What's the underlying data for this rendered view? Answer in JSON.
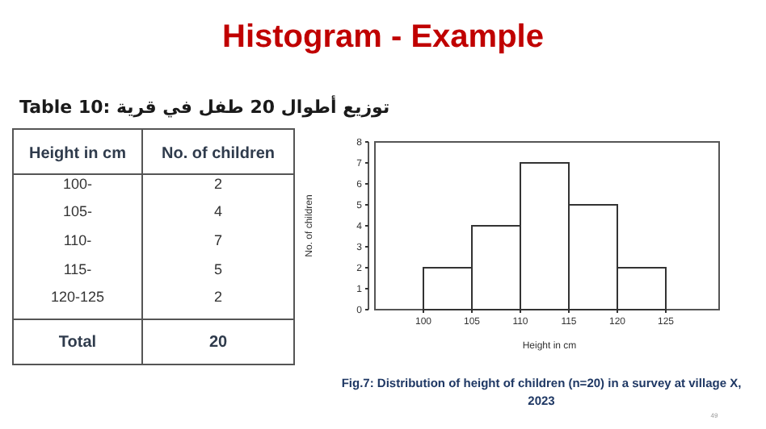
{
  "chart_data": {
    "type": "histogram",
    "title": "Histogram - Example",
    "xlabel": "Height in cm",
    "ylabel": "No. of children",
    "bins": [
      100,
      105,
      110,
      115,
      120,
      125
    ],
    "values": [
      2,
      4,
      7,
      5,
      2
    ],
    "color": "#ffffff",
    "xlim": [
      95,
      130.5
    ],
    "xticks": [
      100,
      105,
      110,
      115,
      120,
      125
    ],
    "ylim": [
      0,
      8
    ],
    "yticks": [
      0,
      1,
      2,
      3,
      4,
      5,
      6,
      7,
      8
    ],
    "grid": false,
    "annotations": [
      "Table 10: توزيع أطوال 20 طفل في قرية",
      "Height in cm",
      "No. of children",
      "100-",
      "105-",
      "110-",
      "115-",
      "120-125",
      "2",
      "4",
      "7",
      "5",
      "2",
      "Total",
      "20",
      "Fig.7: Distribution of height of children (n=20) in a survey at village X,",
      "2023",
      "49"
    ]
  }
}
